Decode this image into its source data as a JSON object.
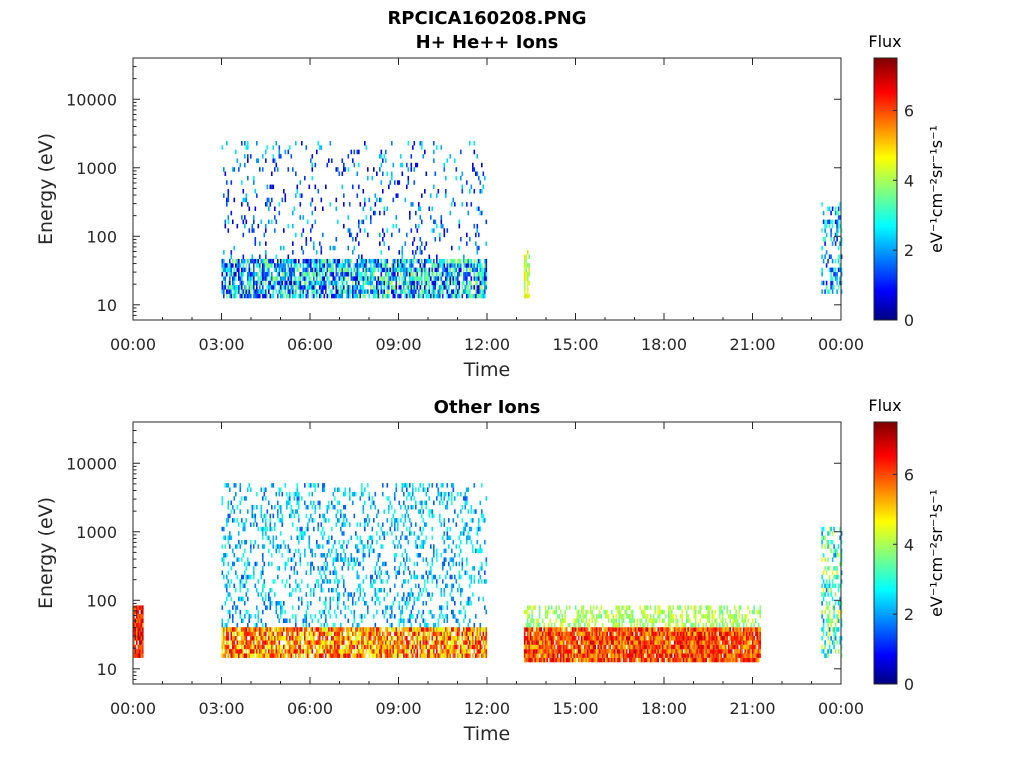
{
  "figure": {
    "title": "RPCICA160208.PNG"
  },
  "chart_data": [
    {
      "type": "heatmap",
      "title": "H+ He++ Ions",
      "xlabel": "Time",
      "ylabel": "Energy (eV)",
      "yscale": "log",
      "ylim": [
        6,
        40000
      ],
      "xlim": [
        "00:00",
        "24:00"
      ],
      "x_ticks": [
        "00:00",
        "03:00",
        "06:00",
        "09:00",
        "12:00",
        "15:00",
        "18:00",
        "21:00",
        "00:00"
      ],
      "y_ticks": [
        "10",
        "100",
        "1000",
        "10000"
      ],
      "colorbar": {
        "title": "Flux",
        "label": "eV⁻¹cm⁻²sr⁻¹s⁻¹",
        "range": [
          0,
          7.5
        ],
        "ticks": [
          "0",
          "2",
          "4",
          "6"
        ]
      },
      "grid": false,
      "regions": [
        {
          "start": "03:00",
          "end": "12:00",
          "energy_range": [
            13,
            45
          ],
          "flux_range": [
            0.5,
            4.2
          ],
          "density": 0.75
        },
        {
          "start": "03:00",
          "end": "12:00",
          "energy_range": [
            45,
            2500
          ],
          "flux_range": [
            0.5,
            2.8
          ],
          "density": 0.1
        },
        {
          "start": "13:15",
          "end": "13:25",
          "energy_range": [
            13,
            60
          ],
          "flux_range": [
            3.5,
            5.0
          ],
          "density": 0.6
        },
        {
          "start": "23:20",
          "end": "24:00",
          "energy_range": [
            15,
            300
          ],
          "flux_range": [
            1.0,
            3.5
          ],
          "density": 0.35
        }
      ]
    },
    {
      "type": "heatmap",
      "title": "Other Ions",
      "xlabel": "Time",
      "ylabel": "Energy (eV)",
      "yscale": "log",
      "ylim": [
        6,
        40000
      ],
      "xlim": [
        "00:00",
        "24:00"
      ],
      "x_ticks": [
        "00:00",
        "03:00",
        "06:00",
        "09:00",
        "12:00",
        "15:00",
        "18:00",
        "21:00",
        "00:00"
      ],
      "y_ticks": [
        "10",
        "100",
        "1000",
        "10000"
      ],
      "colorbar": {
        "title": "Flux",
        "label": "eV⁻¹cm⁻²sr⁻¹s⁻¹",
        "range": [
          0,
          7.5
        ],
        "ticks": [
          "0",
          "2",
          "4",
          "6"
        ]
      },
      "grid": false,
      "regions": [
        {
          "start": "00:00",
          "end": "00:20",
          "energy_range": [
            15,
            80
          ],
          "flux_range": [
            5.5,
            7.2
          ],
          "density": 0.95
        },
        {
          "start": "03:00",
          "end": "12:00",
          "energy_range": [
            14,
            40
          ],
          "flux_range": [
            4.2,
            6.8
          ],
          "density": 0.85
        },
        {
          "start": "03:00",
          "end": "12:00",
          "energy_range": [
            40,
            5000
          ],
          "flux_range": [
            1.5,
            3.2
          ],
          "density": 0.22
        },
        {
          "start": "13:15",
          "end": "21:15",
          "energy_range": [
            12,
            40
          ],
          "flux_range": [
            5.0,
            7.0
          ],
          "density": 0.95
        },
        {
          "start": "13:15",
          "end": "21:15",
          "energy_range": [
            40,
            80
          ],
          "flux_range": [
            3.5,
            4.6
          ],
          "density": 0.45
        },
        {
          "start": "23:20",
          "end": "24:00",
          "energy_range": [
            15,
            1200
          ],
          "flux_range": [
            1.8,
            4.8
          ],
          "density": 0.4
        }
      ]
    }
  ]
}
